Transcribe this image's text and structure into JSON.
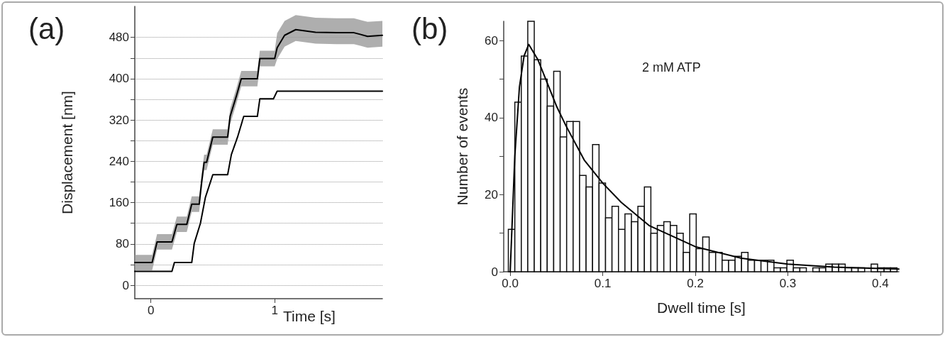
{
  "chart_data": [
    {
      "type": "line",
      "title": "(a)",
      "xlabel": "Time [s]",
      "ylabel": "Displacement [nm]",
      "xlim": [
        -0.13,
        1.87
      ],
      "xticks": [
        0,
        1
      ],
      "ylim": [
        -26,
        540
      ],
      "yticks": [
        0,
        {
          "value": 40,
          "label": null
        },
        80,
        {
          "value": 120,
          "label": null
        },
        160,
        {
          "value": 200,
          "label": null
        },
        240,
        {
          "value": 280,
          "label": null
        },
        320,
        {
          "value": 360,
          "label": null
        },
        400,
        {
          "value": 440,
          "label": null
        },
        480
      ],
      "grid": "y",
      "series": [
        {
          "color": "#000000",
          "x": [
            -0.13,
            0.0,
            0.01,
            0.05,
            0.17,
            0.21,
            0.29,
            0.33,
            0.39,
            0.41,
            0.43,
            0.45,
            0.5,
            0.62,
            0.64,
            0.69,
            0.73,
            0.86,
            0.88,
            1.0,
            1.02,
            1.08,
            1.17,
            1.33,
            1.5,
            1.64,
            1.75,
            1.87
          ],
          "values": [
            44,
            44,
            44,
            84,
            84,
            118,
            118,
            157,
            157,
            200,
            238,
            238,
            287,
            287,
            327,
            366,
            400,
            400,
            439,
            439,
            460,
            484,
            495,
            490,
            489,
            489,
            482,
            484
          ],
          "lower": [
            29,
            29,
            29,
            69,
            69,
            103,
            103,
            142,
            142,
            185,
            223,
            223,
            272,
            272,
            312,
            351,
            385,
            385,
            424,
            424,
            438,
            462,
            473,
            468,
            467,
            467,
            460,
            462
          ],
          "upper": [
            59,
            59,
            59,
            99,
            99,
            133,
            133,
            172,
            172,
            215,
            253,
            253,
            302,
            302,
            342,
            381,
            415,
            415,
            454,
            454,
            488,
            512,
            523,
            518,
            517,
            517,
            510,
            512
          ]
        },
        {
          "color": "#000000",
          "x": [
            -0.13,
            0.17,
            0.19,
            0.33,
            0.35,
            0.4,
            0.44,
            0.5,
            0.62,
            0.65,
            0.7,
            0.75,
            0.86,
            0.88,
            0.99,
            1.02,
            1.87
          ],
          "values": [
            27,
            27,
            44,
            44,
            81,
            120,
            170,
            214,
            214,
            253,
            287,
            327,
            327,
            361,
            361,
            376,
            376
          ]
        }
      ]
    },
    {
      "type": "histogram",
      "title": "(b)",
      "xlabel": "Dwell time [s]",
      "ylabel": "Number of events",
      "annotations": [
        "2 mM ATP"
      ],
      "xlim": [
        -0.007,
        0.42
      ],
      "xticks": [
        {
          "value": 0,
          "label": "0.0"
        },
        0.1,
        0.2,
        0.3,
        0.4
      ],
      "ylim": [
        0,
        65
      ],
      "yticks": [
        0,
        {
          "value": 10,
          "label": null
        },
        20,
        {
          "value": 30,
          "label": null
        },
        40,
        {
          "value": 50,
          "label": null
        },
        60
      ],
      "bins": [
        -0.002,
        0.005,
        0.012,
        0.019,
        0.026,
        0.033,
        0.04,
        0.047,
        0.054,
        0.061,
        0.068,
        0.075,
        0.082,
        0.089,
        0.096,
        0.103,
        0.11,
        0.117,
        0.124,
        0.131,
        0.138,
        0.145,
        0.152,
        0.159,
        0.166,
        0.173,
        0.18,
        0.187,
        0.194,
        0.201,
        0.208,
        0.215,
        0.222,
        0.229,
        0.236,
        0.243,
        0.25,
        0.257,
        0.264,
        0.271,
        0.278,
        0.285,
        0.292,
        0.299,
        0.306,
        0.313,
        0.32,
        0.327,
        0.334,
        0.341,
        0.348,
        0.355,
        0.362,
        0.369,
        0.376,
        0.383,
        0.39,
        0.397,
        0.404,
        0.411,
        0.418
      ],
      "values": [
        11,
        44,
        56,
        65,
        55,
        50,
        43,
        52,
        35,
        39,
        39,
        25,
        22,
        33,
        23,
        14,
        17,
        11,
        15,
        13,
        17,
        22,
        10,
        12,
        13,
        12,
        10,
        5,
        15,
        6,
        9,
        5,
        5,
        3,
        3,
        4,
        5,
        3,
        3,
        3,
        3,
        1,
        1,
        3,
        1,
        1,
        0,
        1,
        1,
        2,
        2,
        2,
        1,
        1,
        1,
        0,
        2,
        1,
        1,
        1
      ],
      "color": "#ffffff",
      "series": [
        {
          "type": "line",
          "color": "#000000",
          "x": [
            0,
            0.005,
            0.01,
            0.015,
            0.02,
            0.03,
            0.04,
            0.05,
            0.06,
            0.08,
            0.1,
            0.12,
            0.15,
            0.2,
            0.25,
            0.3,
            0.35,
            0.42
          ],
          "values": [
            0,
            30,
            48,
            56,
            59,
            55,
            49,
            43,
            38,
            29,
            23,
            18,
            12,
            6.5,
            3.5,
            2,
            1.2,
            0.7
          ]
        }
      ]
    }
  ]
}
